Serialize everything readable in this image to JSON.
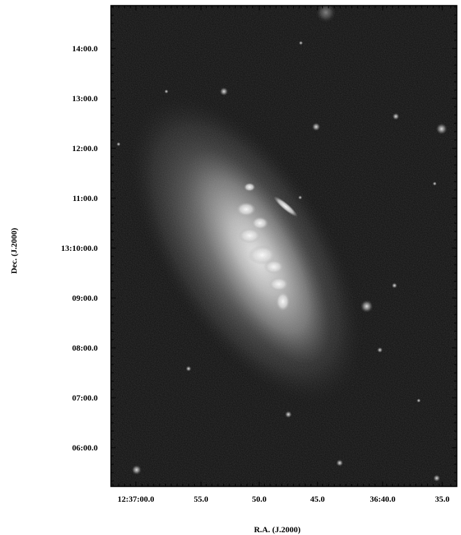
{
  "figure": {
    "y_axis": {
      "title": "Dec. (J.2000)",
      "ticks": [
        "14:00.0",
        "13:00.0",
        "12:00.0",
        "11:00.0",
        "13:10:00.0",
        "09:00.0",
        "08:00.0",
        "07:00.0",
        "06:00.0"
      ]
    },
    "x_axis": {
      "title": "R.A. (J.2000)",
      "ticks": [
        "12:37:00.0",
        "55.0",
        "50.0",
        "45.0",
        "36:40.0",
        "35.0"
      ]
    },
    "image": {
      "subject": "spiral galaxy",
      "colors": {
        "background": "#0e0e0e",
        "galaxy_core": "#f4f4f4",
        "frame": "#000000"
      }
    }
  }
}
